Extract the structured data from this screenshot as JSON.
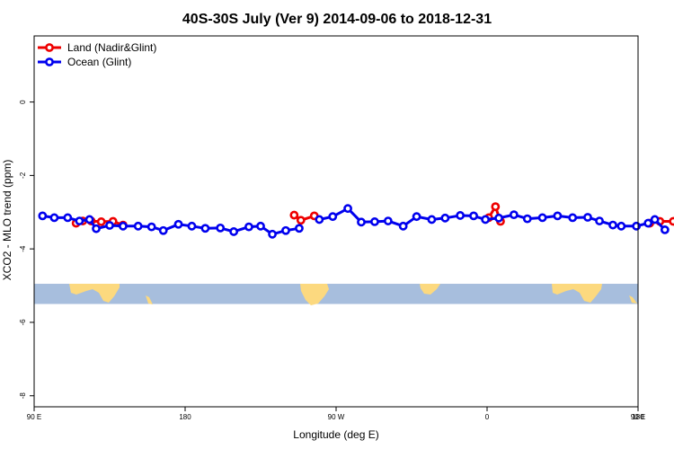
{
  "chart_data": {
    "type": "line",
    "title": "40S-30S July (Ver 9)   2014-09-06 to 2018-12-31",
    "xlabel": "Longitude (deg E)",
    "ylabel": "XCO2 - MLO trend (ppm)",
    "xlim": [
      90,
      450
    ],
    "ylim": [
      -8.3,
      1.8
    ],
    "x_ticks": [
      {
        "value": 90,
        "label": "90 E"
      },
      {
        "value": 180,
        "label": "180"
      },
      {
        "value": 270,
        "label": "90 W"
      },
      {
        "value": 360,
        "label": "0"
      },
      {
        "value": 450,
        "label": "90 E"
      },
      {
        "value": 540,
        "label": "180"
      }
    ],
    "y_ticks": [
      {
        "value": 0,
        "label": "0"
      },
      {
        "value": -2,
        "label": "-2"
      },
      {
        "value": -4,
        "label": "-4"
      },
      {
        "value": -6,
        "label": "-6"
      },
      {
        "value": -8,
        "label": "-8"
      }
    ],
    "legend_position": "top-left",
    "grid": false,
    "map_strip": {
      "y_top": -4.95,
      "y_bottom": -5.5,
      "ocean_color": "#a7bedd",
      "land_color": "#fcd97f"
    },
    "series": [
      {
        "name": "Land (Nadir&Glint)",
        "color": "#ee0000",
        "segments": [
          [
            [
              115,
              -3.3
            ],
            [
              119,
              -3.24
            ],
            [
              124,
              -3.24
            ],
            [
              130,
              -3.26
            ],
            [
              137,
              -3.25
            ],
            [
              143,
              -3.35
            ]
          ],
          [
            [
              245,
              -3.08
            ],
            [
              249,
              -3.22
            ],
            [
              257,
              -3.1
            ]
          ],
          [
            [
              361,
              -3.15
            ],
            [
              365,
              -2.85
            ],
            [
              368,
              -3.25
            ]
          ],
          [
            [
              457,
              -3.3
            ],
            [
              463,
              -3.25
            ],
            [
              471,
              -3.25
            ],
            [
              477,
              -3.26
            ],
            [
              484,
              -3.35
            ]
          ]
        ]
      },
      {
        "name": "Ocean (Glint)",
        "color": "#0000ee",
        "segments": [
          [
            [
              95,
              -3.1
            ],
            [
              102,
              -3.15
            ],
            [
              110,
              -3.15
            ],
            [
              117,
              -3.24
            ],
            [
              123,
              -3.2
            ],
            [
              127,
              -3.45
            ],
            [
              135,
              -3.36
            ],
            [
              143,
              -3.38
            ],
            [
              152,
              -3.38
            ],
            [
              160,
              -3.4
            ],
            [
              167,
              -3.5
            ],
            [
              176,
              -3.33
            ],
            [
              184,
              -3.38
            ],
            [
              192,
              -3.44
            ],
            [
              201,
              -3.43
            ],
            [
              209,
              -3.53
            ],
            [
              218,
              -3.4
            ],
            [
              225,
              -3.38
            ],
            [
              232,
              -3.6
            ],
            [
              240,
              -3.5
            ],
            [
              248,
              -3.44
            ]
          ],
          [
            [
              260,
              -3.2
            ],
            [
              268,
              -3.12
            ],
            [
              277,
              -2.9
            ],
            [
              285,
              -3.27
            ],
            [
              293,
              -3.26
            ],
            [
              301,
              -3.24
            ],
            [
              310,
              -3.38
            ],
            [
              318,
              -3.12
            ],
            [
              327,
              -3.2
            ],
            [
              335,
              -3.16
            ],
            [
              344,
              -3.09
            ],
            [
              352,
              -3.1
            ],
            [
              359,
              -3.2
            ],
            [
              367,
              -3.16
            ],
            [
              376,
              -3.07
            ],
            [
              384,
              -3.18
            ],
            [
              393,
              -3.15
            ],
            [
              402,
              -3.1
            ],
            [
              411,
              -3.15
            ],
            [
              420,
              -3.14
            ],
            [
              427,
              -3.24
            ],
            [
              435,
              -3.35
            ],
            [
              440,
              -3.38
            ],
            [
              449,
              -3.38
            ],
            [
              456,
              -3.3
            ],
            [
              460,
              -3.2
            ],
            [
              466,
              -3.48
            ]
          ]
        ]
      }
    ]
  }
}
